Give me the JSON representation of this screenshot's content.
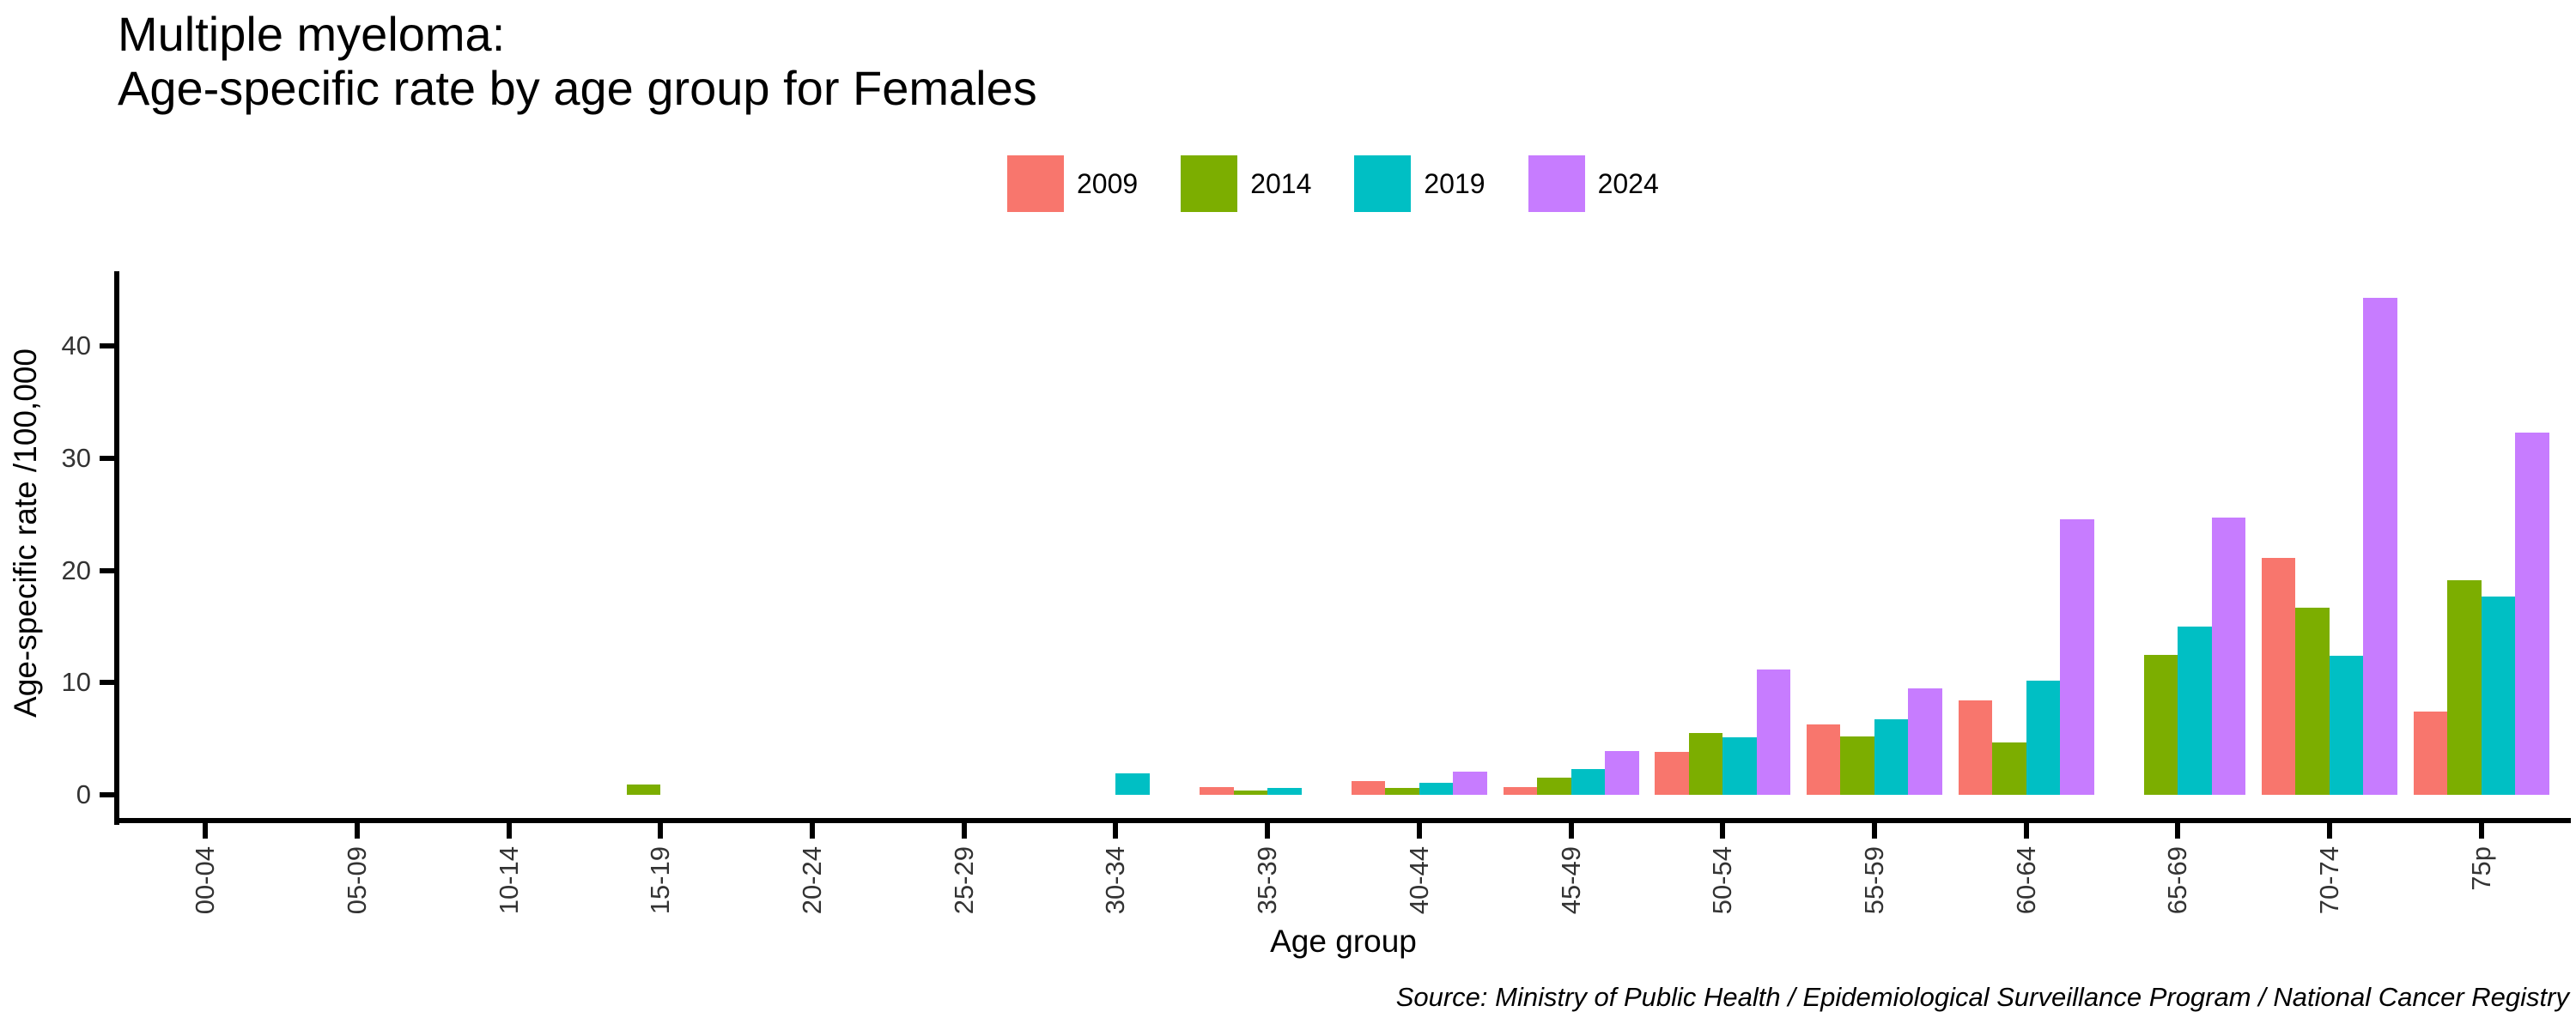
{
  "chart": {
    "title_line1": "Multiple myeloma:",
    "title_line2": "Age-specific rate by age group for Females",
    "source": "Source: Ministry of Public Health / Epidemiological Surveillance Program / National Cancer Registry"
  },
  "chart_data": {
    "type": "bar",
    "title": "Multiple myeloma: Age-specific rate by age group for Females",
    "xlabel": "Age group",
    "ylabel": "Age-specific rate /100,000",
    "categories": [
      "00-04",
      "05-09",
      "10-14",
      "15-19",
      "20-24",
      "25-29",
      "30-34",
      "35-39",
      "40-44",
      "45-49",
      "50-54",
      "55-59",
      "60-64",
      "65-69",
      "70-74",
      "75p"
    ],
    "series": [
      {
        "name": "2009",
        "color": "#F8766D",
        "values": [
          0,
          0,
          0,
          0,
          0,
          0,
          0,
          0.7,
          1.2,
          0.7,
          3.8,
          6.3,
          8.4,
          0,
          21.1,
          7.4
        ]
      },
      {
        "name": "2014",
        "color": "#7CAE00",
        "values": [
          0,
          0,
          0,
          0.9,
          0,
          0,
          0,
          0.4,
          0.6,
          1.5,
          5.5,
          5.2,
          4.7,
          12.5,
          16.7,
          19.1
        ]
      },
      {
        "name": "2019",
        "color": "#00BFC4",
        "values": [
          0,
          0,
          0,
          0,
          0,
          0,
          1.9,
          0.6,
          1.1,
          2.3,
          5.1,
          6.7,
          10.2,
          15,
          12.4,
          17.7
        ]
      },
      {
        "name": "2024",
        "color": "#C77CFF",
        "values": [
          0,
          0,
          0,
          0,
          0,
          0,
          0,
          0,
          2.1,
          3.9,
          11.2,
          9.5,
          24.6,
          24.7,
          44.3,
          32.3
        ]
      }
    ],
    "yticks": [
      0,
      10,
      20,
      30,
      40
    ],
    "ylim": [
      0,
      46.7
    ],
    "grid": false,
    "legend_position": "top",
    "bar_orientation": "vertical"
  }
}
